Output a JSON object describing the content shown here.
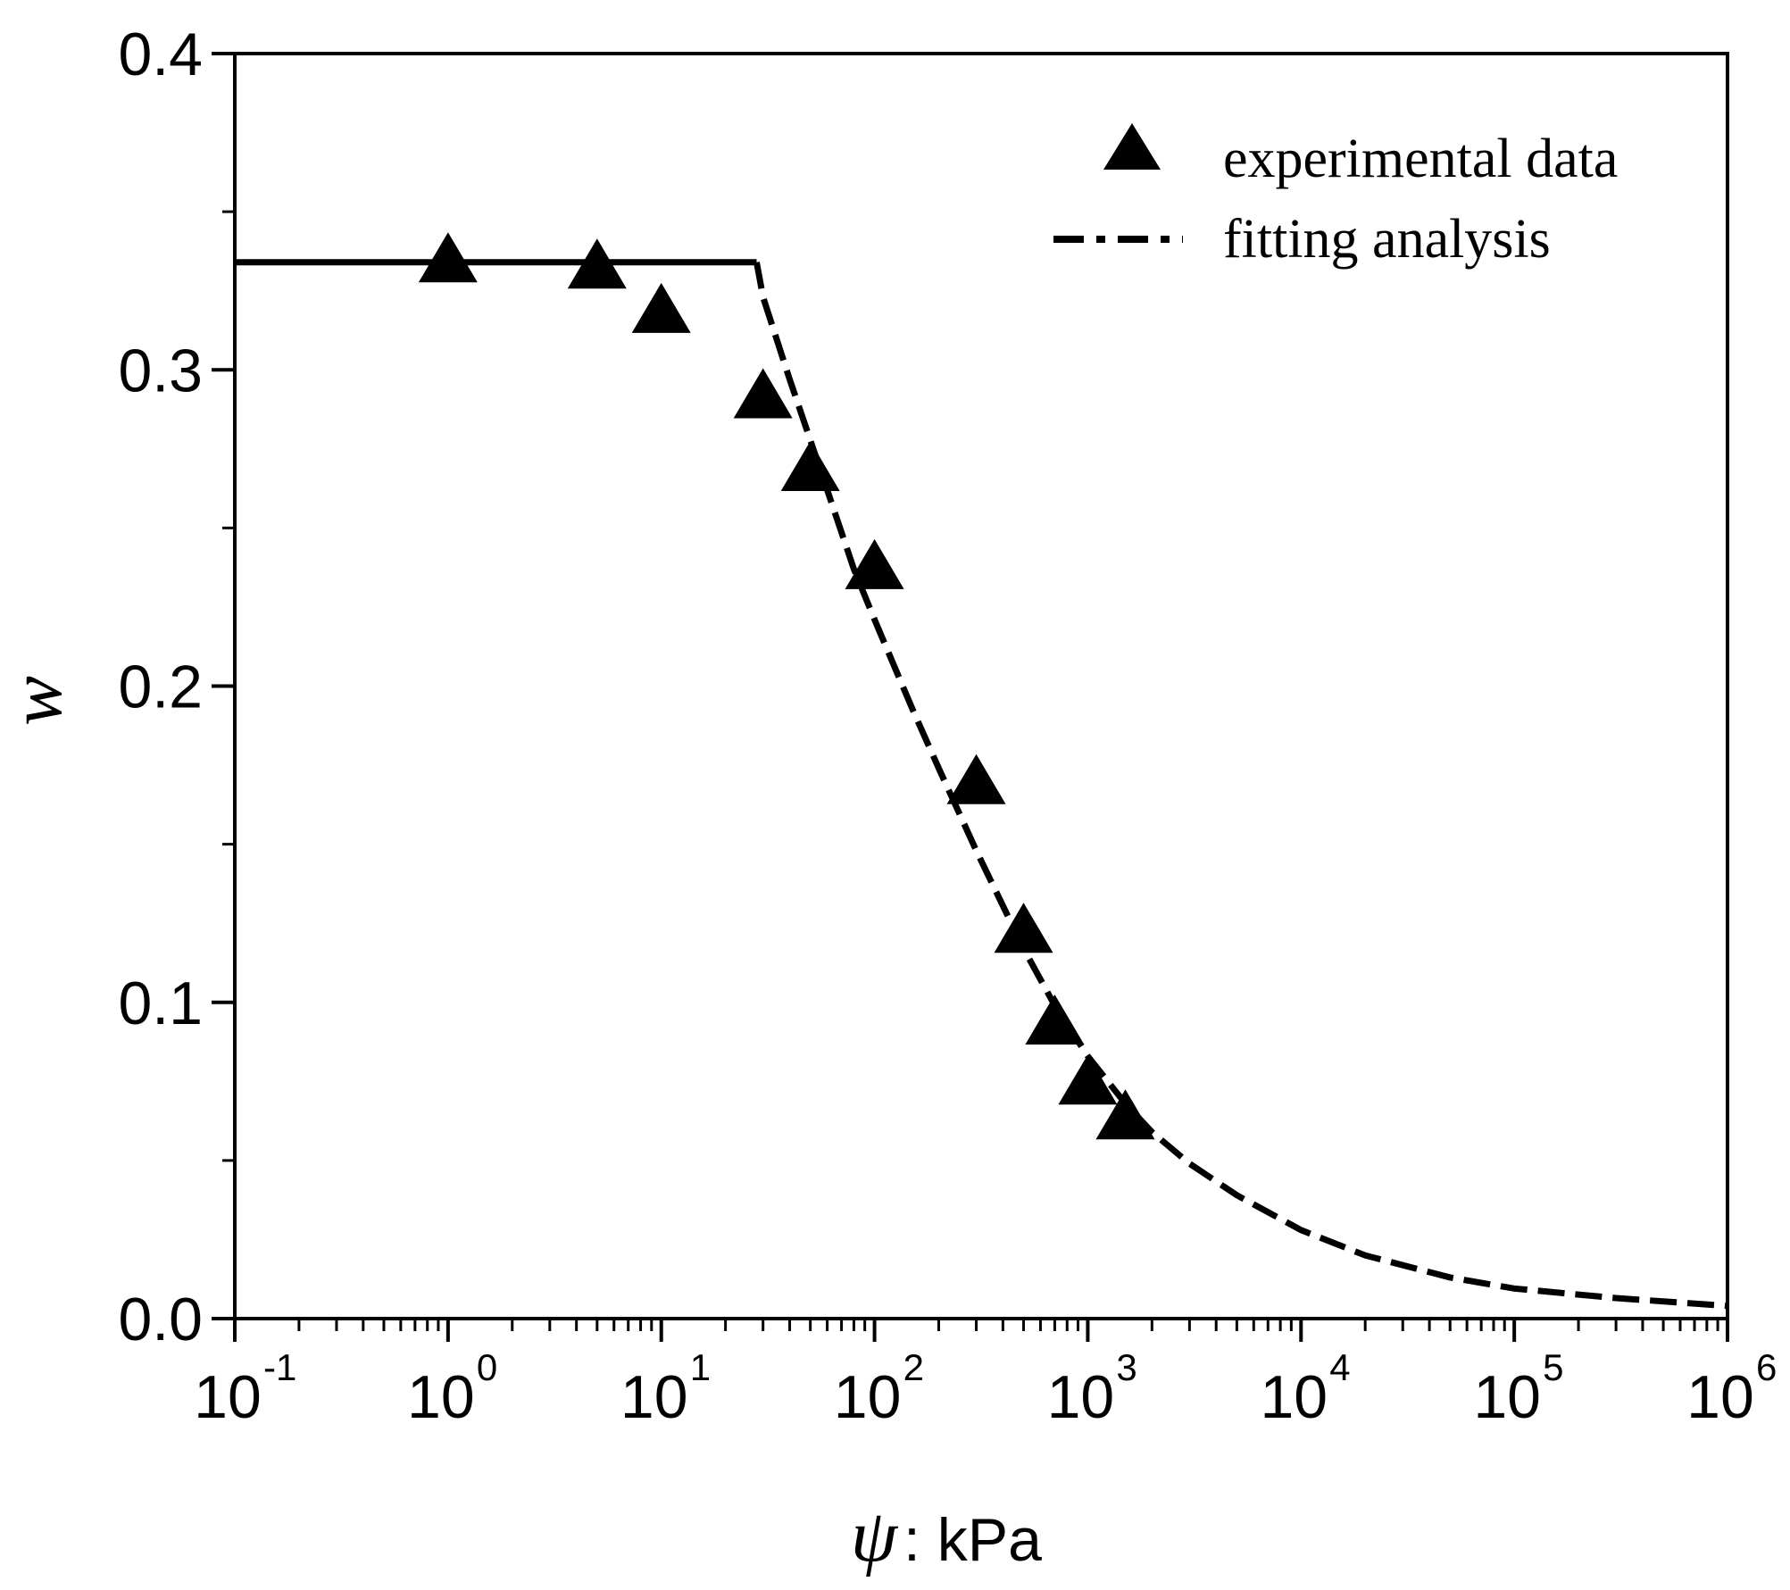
{
  "chart_data": {
    "type": "scatter",
    "title": "",
    "xlabel": {
      "symbol": "ψ",
      "unit": ": kPa"
    },
    "ylabel": "w",
    "xscale": "log",
    "xlim": [
      0.1,
      1000000
    ],
    "ylim": [
      0.0,
      0.4
    ],
    "x_tick_labels": [
      {
        "base": "10",
        "exp": "-1"
      },
      {
        "base": "10",
        "exp": "0"
      },
      {
        "base": "10",
        "exp": "1"
      },
      {
        "base": "10",
        "exp": "2"
      },
      {
        "base": "10",
        "exp": "3"
      },
      {
        "base": "10",
        "exp": "4"
      },
      {
        "base": "10",
        "exp": "5"
      },
      {
        "base": "10",
        "exp": "6"
      }
    ],
    "y_tick_labels": [
      "0.0",
      "0.1",
      "0.2",
      "0.3",
      "0.4"
    ],
    "y_ticks": [
      0.0,
      0.1,
      0.2,
      0.3,
      0.4
    ],
    "y_minor_ticks": [
      0.05,
      0.15,
      0.25,
      0.35
    ],
    "grid": false,
    "legend": {
      "position": "top-right",
      "entries": [
        {
          "label": "experimental data",
          "marker": "triangle"
        },
        {
          "label": "fitting analysis",
          "marker": "dash-dot-line"
        }
      ]
    },
    "series": [
      {
        "name": "experimental data",
        "kind": "scatter",
        "color": "#000000",
        "points": [
          {
            "x": 1,
            "y": 0.334
          },
          {
            "x": 5,
            "y": 0.332
          },
          {
            "x": 10,
            "y": 0.318
          },
          {
            "x": 30,
            "y": 0.291
          },
          {
            "x": 50,
            "y": 0.268
          },
          {
            "x": 100,
            "y": 0.237
          },
          {
            "x": 300,
            "y": 0.169
          },
          {
            "x": 500,
            "y": 0.122
          },
          {
            "x": 700,
            "y": 0.093
          },
          {
            "x": 1000,
            "y": 0.074
          },
          {
            "x": 1500,
            "y": 0.063
          }
        ]
      },
      {
        "name": "fitting analysis",
        "kind": "line",
        "color": "#000000",
        "points": [
          {
            "x": 0.1,
            "y": 0.334
          },
          {
            "x": 28,
            "y": 0.334
          },
          {
            "x": 30,
            "y": 0.323
          },
          {
            "x": 40,
            "y": 0.297
          },
          {
            "x": 60,
            "y": 0.262
          },
          {
            "x": 80,
            "y": 0.237
          },
          {
            "x": 100,
            "y": 0.221
          },
          {
            "x": 150,
            "y": 0.193
          },
          {
            "x": 200,
            "y": 0.174
          },
          {
            "x": 300,
            "y": 0.148
          },
          {
            "x": 500,
            "y": 0.117
          },
          {
            "x": 700,
            "y": 0.099
          },
          {
            "x": 1000,
            "y": 0.083
          },
          {
            "x": 1500,
            "y": 0.068
          },
          {
            "x": 2000,
            "y": 0.059
          },
          {
            "x": 3000,
            "y": 0.049
          },
          {
            "x": 5000,
            "y": 0.039
          },
          {
            "x": 10000,
            "y": 0.028
          },
          {
            "x": 20000,
            "y": 0.02
          },
          {
            "x": 50000,
            "y": 0.013
          },
          {
            "x": 100000,
            "y": 0.0095
          },
          {
            "x": 300000,
            "y": 0.0065
          },
          {
            "x": 1000000,
            "y": 0.004
          }
        ]
      }
    ]
  }
}
